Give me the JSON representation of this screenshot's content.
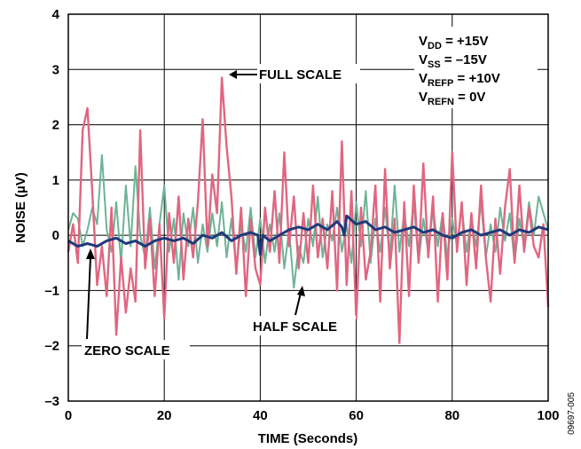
{
  "chart_data": {
    "type": "line",
    "xlabel": "TIME (Seconds)",
    "ylabel": "NOISE (µV)",
    "xlim": [
      0,
      100
    ],
    "ylim": [
      -3,
      4
    ],
    "xticks": [
      "0",
      "20",
      "40",
      "60",
      "80",
      "100"
    ],
    "yticks": [
      "–3",
      "–2",
      "–1",
      "0",
      "1",
      "2",
      "3",
      "4"
    ],
    "grid": true,
    "colors": {
      "full_scale": "#e06680",
      "half_scale": "#6db396",
      "zero_scale": "#1f3a7a"
    },
    "conditions": [
      {
        "main": "V",
        "sub": "DD",
        "rest": " = +15V"
      },
      {
        "main": "V",
        "sub": "SS",
        "rest": " = –15V"
      },
      {
        "main": "V",
        "sub": "REFP",
        "rest": " = +10V"
      },
      {
        "main": "V",
        "sub": "REFN",
        "rest": " = 0V"
      }
    ],
    "annotations": {
      "full": "FULL SCALE",
      "half": "HALF SCALE",
      "zero": "ZERO SCALE"
    },
    "figure_id": "09697-005",
    "series": [
      {
        "key": "half",
        "x": [
          0,
          1,
          2,
          3,
          4,
          5,
          6,
          7,
          8,
          9,
          10,
          11,
          12,
          13,
          14,
          15,
          16,
          17,
          18,
          19,
          20,
          21,
          22,
          23,
          24,
          25,
          26,
          27,
          28,
          29,
          30,
          31,
          32,
          33,
          34,
          35,
          36,
          37,
          38,
          39,
          40,
          41,
          42,
          43,
          44,
          45,
          46,
          47,
          48,
          49,
          50,
          51,
          52,
          53,
          54,
          55,
          56,
          57,
          58,
          59,
          60,
          61,
          62,
          63,
          64,
          65,
          66,
          67,
          68,
          69,
          70,
          71,
          72,
          73,
          74,
          75,
          76,
          77,
          78,
          79,
          80,
          81,
          82,
          83,
          84,
          85,
          86,
          87,
          88,
          89,
          90,
          91,
          92,
          93,
          94,
          95,
          96,
          97,
          98,
          99,
          100
        ],
        "y": [
          0.1,
          0.4,
          0.3,
          -0.2,
          0.1,
          0.5,
          0.2,
          1.45,
          0.1,
          -0.3,
          0.6,
          -0.5,
          0.9,
          -0.2,
          1.25,
          0.0,
          -0.4,
          0.5,
          -0.6,
          0.2,
          0.9,
          -0.3,
          0.3,
          -0.8,
          0.4,
          -0.2,
          0.5,
          -0.5,
          0.2,
          -0.3,
          0.4,
          -0.2,
          0.6,
          -0.4,
          0.3,
          -0.6,
          0.2,
          -0.3,
          0.5,
          -0.4,
          0.3,
          -0.5,
          0.2,
          -0.3,
          0.4,
          -0.6,
          0.1,
          -0.95,
          -0.2,
          -0.5,
          0.3,
          -0.2,
          0.7,
          -0.4,
          0.2,
          -0.1,
          0.5,
          -0.3,
          0.2,
          -0.5,
          0.6,
          -0.2,
          0.8,
          -0.5,
          0.3,
          -0.3,
          0.5,
          -0.4,
          0.9,
          -0.3,
          0.4,
          -0.2,
          0.6,
          -0.5,
          0.3,
          -0.3,
          0.5,
          -0.2,
          0.4,
          -0.4,
          0.3,
          -0.2,
          0.5,
          -0.3,
          0.3,
          -0.2,
          0.6,
          -0.4,
          0.2,
          -0.3,
          0.5,
          -0.1,
          0.4,
          -0.5,
          0.3,
          -0.2,
          0.6,
          0.0,
          0.7,
          0.4,
          0.1
        ]
      },
      {
        "key": "full",
        "x": [
          0,
          1,
          2,
          3,
          4,
          5,
          6,
          7,
          8,
          9,
          10,
          11,
          12,
          13,
          14,
          15,
          16,
          17,
          18,
          19,
          20,
          21,
          22,
          23,
          24,
          25,
          26,
          27,
          28,
          29,
          30,
          31,
          32,
          33,
          34,
          35,
          36,
          37,
          38,
          39,
          40,
          41,
          42,
          43,
          44,
          45,
          46,
          47,
          48,
          49,
          50,
          51,
          52,
          53,
          54,
          55,
          56,
          57,
          58,
          59,
          60,
          61,
          62,
          63,
          64,
          65,
          66,
          67,
          68,
          69,
          70,
          71,
          72,
          73,
          74,
          75,
          76,
          77,
          78,
          79,
          80,
          81,
          82,
          83,
          84,
          85,
          86,
          87,
          88,
          89,
          90,
          91,
          92,
          93,
          94,
          95,
          96,
          97,
          98,
          99,
          100
        ],
        "y": [
          -0.3,
          0.2,
          -0.5,
          1.9,
          2.3,
          0.8,
          -0.9,
          -0.2,
          -1.1,
          0.5,
          -1.8,
          -0.4,
          -1.4,
          -0.6,
          -1.2,
          1.9,
          -0.6,
          0.3,
          -1.1,
          0.2,
          -1.5,
          0.4,
          -0.5,
          0.7,
          -0.8,
          0.3,
          -0.4,
          0.6,
          2.1,
          -0.2,
          1.1,
          0.4,
          2.85,
          1.6,
          0.7,
          -0.7,
          0.5,
          -1.1,
          0.3,
          -0.6,
          -0.9,
          0.5,
          -0.3,
          0.8,
          -0.5,
          1.5,
          -0.2,
          0.7,
          -0.6,
          0.4,
          -0.5,
          0.9,
          -0.4,
          0.3,
          -0.6,
          0.8,
          -1.0,
          1.7,
          -0.9,
          0.8,
          -1.5,
          0.5,
          -0.8,
          -0.3,
          0.9,
          -1.2,
          1.2,
          -0.6,
          0.3,
          -1.95,
          0.6,
          -1.1,
          0.9,
          -0.5,
          1.3,
          -0.4,
          0.7,
          -1.2,
          0.4,
          -0.8,
          1.5,
          -0.3,
          0.6,
          -0.9,
          0.4,
          -0.6,
          0.9,
          -0.4,
          -1.2,
          0.3,
          -0.7,
          0.5,
          1.2,
          -0.5,
          0.9,
          -0.3,
          0.5,
          -0.2,
          -0.4,
          0.2,
          -1.3
        ]
      },
      {
        "key": "zero",
        "x": [
          0,
          2,
          4,
          6,
          8,
          10,
          12,
          14,
          16,
          18,
          20,
          22,
          24,
          26,
          28,
          30,
          32,
          34,
          36,
          38,
          39.5,
          40,
          40.5,
          42,
          44,
          46,
          48,
          50,
          52,
          54,
          56,
          57,
          57.5,
          58,
          60,
          62,
          64,
          66,
          68,
          70,
          72,
          74,
          76,
          78,
          80,
          82,
          84,
          86,
          88,
          90,
          92,
          94,
          96,
          98,
          100
        ],
        "y": [
          -0.1,
          -0.2,
          -0.15,
          -0.2,
          -0.1,
          -0.05,
          -0.15,
          -0.1,
          -0.2,
          -0.1,
          -0.05,
          -0.1,
          -0.05,
          -0.15,
          0.0,
          -0.05,
          0.05,
          -0.1,
          0.0,
          0.05,
          0.0,
          -0.35,
          0.0,
          -0.1,
          0.0,
          0.1,
          0.15,
          0.1,
          0.2,
          0.1,
          0.25,
          0.15,
          0.0,
          0.35,
          0.2,
          0.25,
          0.1,
          0.15,
          0.05,
          0.1,
          0.15,
          0.05,
          0.1,
          0.0,
          -0.05,
          0.05,
          0.1,
          0.0,
          0.05,
          0.1,
          0.0,
          0.1,
          0.05,
          0.15,
          0.1
        ]
      }
    ]
  }
}
